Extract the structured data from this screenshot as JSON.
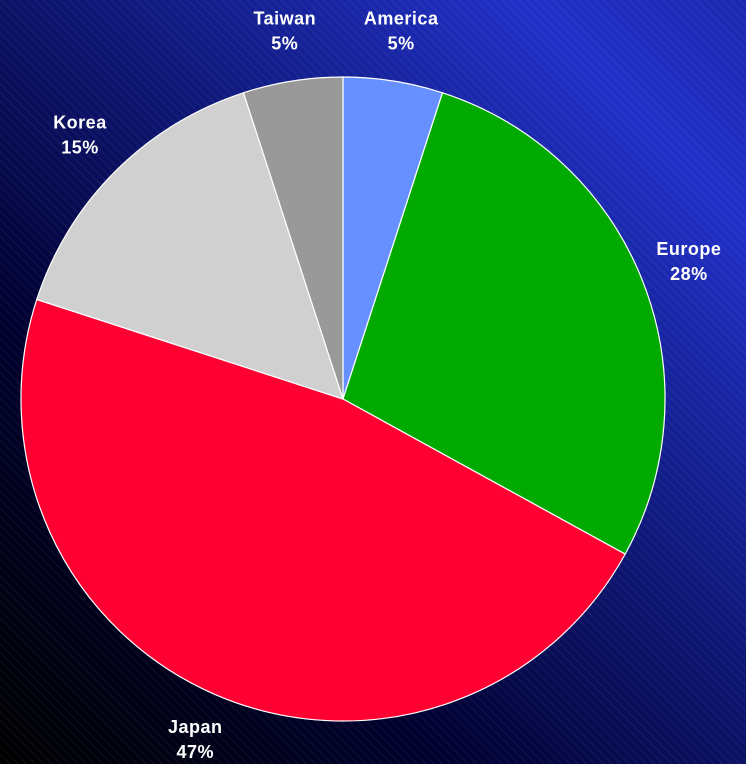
{
  "chart_data": {
    "type": "pie",
    "categories": [
      "America",
      "Europe",
      "Japan",
      "Korea",
      "Taiwan"
    ],
    "values": [
      5,
      28,
      47,
      15,
      5
    ],
    "value_labels": [
      "5%",
      "28%",
      "47%",
      "15%",
      "5%"
    ],
    "colors": [
      "#6690ff",
      "#00aa00",
      "#ff0033",
      "#d0d0d0",
      "#999999"
    ]
  }
}
